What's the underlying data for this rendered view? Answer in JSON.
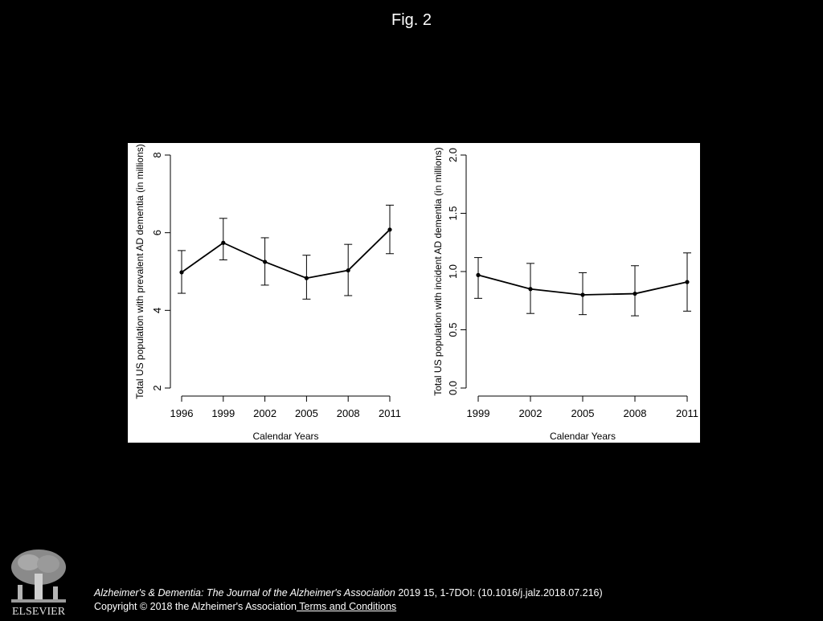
{
  "figure": {
    "title": "Fig. 2"
  },
  "chart_data": [
    {
      "type": "line",
      "title": "",
      "xlabel": "Calendar Years",
      "ylabel": "Total US population with prevalent AD dementia (in millions)",
      "x": [
        1996,
        1999,
        2002,
        2005,
        2008,
        2011
      ],
      "xticks": [
        "1996",
        "1999",
        "2002",
        "2005",
        "2008",
        "2011"
      ],
      "y": [
        4.98,
        5.74,
        5.25,
        4.83,
        5.03,
        6.08
      ],
      "y_lower": [
        4.44,
        5.3,
        4.65,
        4.29,
        4.38,
        5.46
      ],
      "y_upper": [
        5.54,
        6.37,
        5.87,
        5.42,
        5.7,
        6.71
      ],
      "ylim": [
        2,
        8
      ],
      "yticks": [
        "2",
        "4",
        "6",
        "8"
      ],
      "grid": false,
      "error_bars": true
    },
    {
      "type": "line",
      "title": "",
      "xlabel": "Calendar Years",
      "ylabel": "Total US population with incident AD dementia (in millions)",
      "x": [
        1999,
        2002,
        2005,
        2008,
        2011
      ],
      "xticks": [
        "1999",
        "2002",
        "2005",
        "2008",
        "2011"
      ],
      "y": [
        0.97,
        0.85,
        0.8,
        0.81,
        0.91
      ],
      "y_lower": [
        0.77,
        0.64,
        0.63,
        0.62,
        0.66
      ],
      "y_upper": [
        1.12,
        1.07,
        0.99,
        1.05,
        1.16
      ],
      "ylim": [
        0,
        2
      ],
      "yticks": [
        "0.0",
        "0.5",
        "1.0",
        "1.5",
        "2.0"
      ],
      "grid": false,
      "error_bars": true
    }
  ],
  "footer": {
    "journal": "Alzheimer's & Dementia: The Journal of the Alzheimer's Association",
    "citation_rest": " 2019 15, 1-7DOI: (10.1016/j.jalz.2018.07.216)",
    "copyright": "Copyright © 2018 the Alzheimer's Association",
    "terms_link": " Terms and Conditions"
  },
  "logo": {
    "text": "ELSEVIER",
    "icon": "elsevier-tree-icon"
  }
}
